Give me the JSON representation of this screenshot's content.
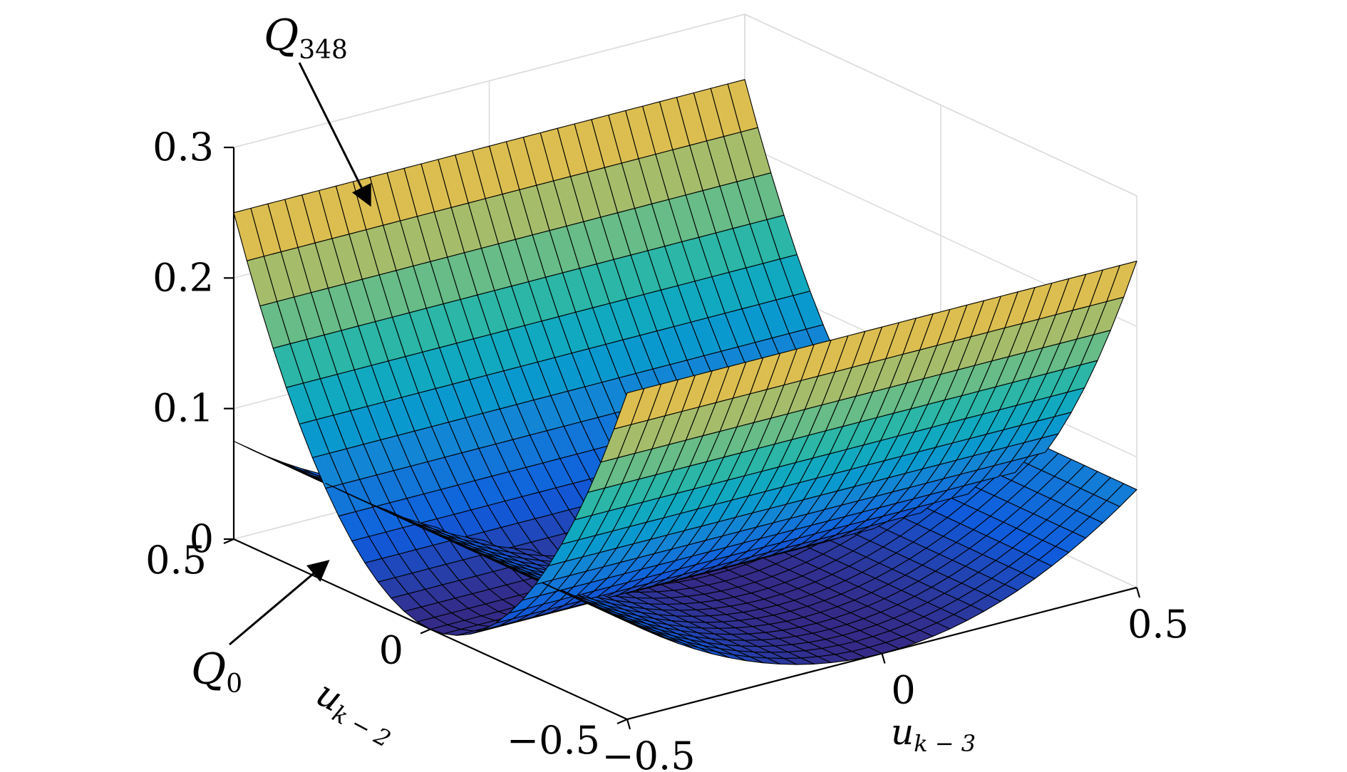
{
  "chart_data": {
    "type": "surface",
    "xlabel": {
      "base": "u",
      "sub": "k − 3"
    },
    "ylabel": {
      "base": "u",
      "sub": "k − 2"
    },
    "zlabel": "",
    "xlim": [
      -0.5,
      0.5
    ],
    "ylim": [
      -0.5,
      0.5
    ],
    "zlim": [
      0,
      0.3
    ],
    "x_ticks": [
      -0.5,
      0,
      0.5
    ],
    "y_ticks": [
      -0.5,
      0,
      0.5
    ],
    "z_ticks": [
      0,
      0.1,
      0.2,
      0.3
    ],
    "x_tick_labels": [
      "−0.5",
      "0",
      "0.5"
    ],
    "y_tick_labels": [
      "−0.5",
      "0",
      "0.5"
    ],
    "z_tick_labels": [
      "0",
      "0.1",
      "0.2",
      "0.3"
    ],
    "grid": true,
    "colormap": "parula",
    "colormap_stops": [
      "#352a87",
      "#0f5cdd",
      "#1481d6",
      "#06a4ca",
      "#2eb7a4",
      "#87bf77",
      "#d1bb59",
      "#fec832",
      "#f9fb0e"
    ],
    "edge_color": "#000000",
    "series": [
      {
        "name": "Q348",
        "formula": "z = 1.0 * uk2^2",
        "grid_n": 31,
        "edge_color": "#000000"
      },
      {
        "name": "Q0",
        "formula": "z = 0.3 * uk3^2",
        "grid_n": 31,
        "edge_color": "#000000"
      }
    ],
    "annotations": [
      {
        "label_base": "Q",
        "label_sub": "348",
        "target": [
          0.0,
          0.45,
          0.22
        ]
      },
      {
        "label_base": "Q",
        "label_sub": "0",
        "target": [
          -0.5,
          0.3,
          0.0
        ]
      }
    ]
  }
}
